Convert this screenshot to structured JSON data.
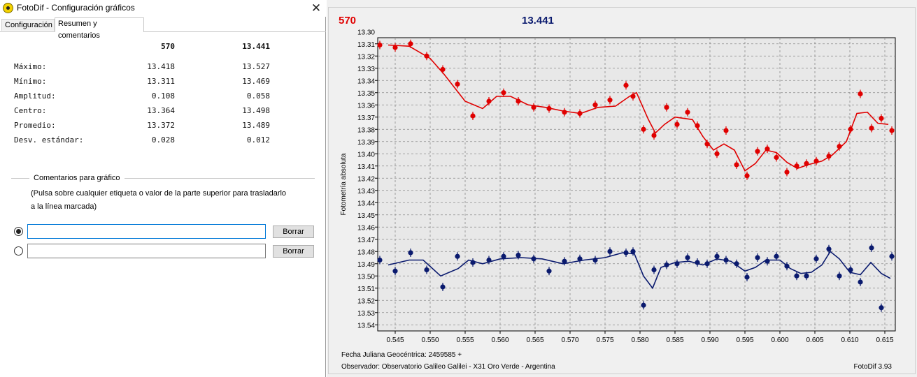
{
  "window": {
    "title": "FotoDif - Configuración gráficos",
    "close_glyph": "✕"
  },
  "tabs": [
    {
      "label": "Configuración",
      "active": false
    },
    {
      "label": "Resumen y comentarios",
      "active": true
    }
  ],
  "stats": {
    "columns": [
      "570",
      "13.441"
    ],
    "rows": [
      {
        "label": "Máximo:",
        "v1": "13.418",
        "v2": "13.527"
      },
      {
        "label": "Mínimo:",
        "v1": "13.311",
        "v2": "13.469"
      },
      {
        "label": "Amplitud:",
        "v1": "0.108",
        "v2": "0.058"
      },
      {
        "label": "Centro:",
        "v1": "13.364",
        "v2": "13.498"
      },
      {
        "label": "Promedio:",
        "v1": "13.372",
        "v2": "13.489"
      },
      {
        "label": "Desv. estándar:",
        "v1": "0.028",
        "v2": "0.012"
      }
    ]
  },
  "comments": {
    "group_label": "Comentarios para gráfico",
    "hint_line1": "(Pulsa sobre cualquier etiqueta o valor de la parte superior para trasladarlo",
    "hint_line2": "a la línea marcada)",
    "lines": [
      {
        "value": "",
        "selected": true,
        "button": "Borrar"
      },
      {
        "value": "",
        "selected": false,
        "button": "Borrar"
      }
    ]
  },
  "colors": {
    "series1": "#e00000",
    "series2": "#0a1a6e",
    "accent": "#0078d7"
  },
  "chart_data": {
    "type": "scatter",
    "legend_labels": [
      "570",
      "13.441"
    ],
    "ylabel": "Fotometría absoluta",
    "xlabel_line1": "Fecha Juliana Geocéntrica: 2459585 +",
    "xlabel_line2": "Observador: Observatorio Galileo Galilei - X31 Oro Verde - Argentina",
    "footer": "FotoDif 3.93",
    "xlim": [
      0.5425,
      0.6165
    ],
    "ylim": [
      13.305,
      13.545
    ],
    "y_reversed": true,
    "grid": true,
    "xticks": [
      "0.545",
      "0.550",
      "0.555",
      "0.560",
      "0.565",
      "0.570",
      "0.575",
      "0.580",
      "0.585",
      "0.590",
      "0.595",
      "0.600",
      "0.605",
      "0.610",
      "0.615"
    ],
    "yticks": [
      "13.30",
      "13.31",
      "13.32",
      "13.33",
      "13.34",
      "13.35",
      "13.36",
      "13.37",
      "13.38",
      "13.39",
      "13.40",
      "13.41",
      "13.42",
      "13.43",
      "13.44",
      "13.45",
      "13.46",
      "13.47",
      "13.48",
      "13.49",
      "13.50",
      "13.51",
      "13.52",
      "13.53",
      "13.54"
    ],
    "series": [
      {
        "name": "570",
        "color": "#e00000",
        "points": [
          [
            0.5428,
            13.311
          ],
          [
            0.545,
            13.313
          ],
          [
            0.5472,
            13.31
          ],
          [
            0.5495,
            13.32
          ],
          [
            0.5518,
            13.331
          ],
          [
            0.5539,
            13.343
          ],
          [
            0.5561,
            13.369
          ],
          [
            0.5584,
            13.357
          ],
          [
            0.5605,
            13.35
          ],
          [
            0.5626,
            13.357
          ],
          [
            0.5648,
            13.362
          ],
          [
            0.567,
            13.363
          ],
          [
            0.5692,
            13.366
          ],
          [
            0.5714,
            13.367
          ],
          [
            0.5736,
            13.36
          ],
          [
            0.5757,
            13.356
          ],
          [
            0.578,
            13.344
          ],
          [
            0.579,
            13.353
          ],
          [
            0.5805,
            13.38
          ],
          [
            0.582,
            13.385
          ],
          [
            0.5838,
            13.362
          ],
          [
            0.5853,
            13.376
          ],
          [
            0.5868,
            13.366
          ],
          [
            0.5882,
            13.377
          ],
          [
            0.5896,
            13.392
          ],
          [
            0.591,
            13.4
          ],
          [
            0.5923,
            13.381
          ],
          [
            0.5938,
            13.409
          ],
          [
            0.5953,
            13.418
          ],
          [
            0.5968,
            13.398
          ],
          [
            0.5982,
            13.396
          ],
          [
            0.5995,
            13.403
          ],
          [
            0.601,
            13.415
          ],
          [
            0.6024,
            13.41
          ],
          [
            0.6038,
            13.408
          ],
          [
            0.6052,
            13.406
          ],
          [
            0.607,
            13.402
          ],
          [
            0.6085,
            13.394
          ],
          [
            0.6101,
            13.38
          ],
          [
            0.6115,
            13.351
          ],
          [
            0.6131,
            13.379
          ],
          [
            0.6145,
            13.371
          ],
          [
            0.616,
            13.381
          ]
        ],
        "fit": [
          [
            0.544,
            13.311
          ],
          [
            0.547,
            13.312
          ],
          [
            0.55,
            13.322
          ],
          [
            0.552,
            13.335
          ],
          [
            0.555,
            13.357
          ],
          [
            0.5575,
            13.363
          ],
          [
            0.5595,
            13.353
          ],
          [
            0.5615,
            13.353
          ],
          [
            0.564,
            13.36
          ],
          [
            0.5665,
            13.362
          ],
          [
            0.569,
            13.365
          ],
          [
            0.5715,
            13.367
          ],
          [
            0.574,
            13.362
          ],
          [
            0.5765,
            13.361
          ],
          [
            0.5785,
            13.353
          ],
          [
            0.5795,
            13.35
          ],
          [
            0.5812,
            13.372
          ],
          [
            0.5822,
            13.383
          ],
          [
            0.5835,
            13.376
          ],
          [
            0.585,
            13.37
          ],
          [
            0.5875,
            13.372
          ],
          [
            0.589,
            13.386
          ],
          [
            0.5905,
            13.397
          ],
          [
            0.592,
            13.392
          ],
          [
            0.5935,
            13.397
          ],
          [
            0.595,
            13.414
          ],
          [
            0.5965,
            13.408
          ],
          [
            0.598,
            13.397
          ],
          [
            0.5995,
            13.399
          ],
          [
            0.601,
            13.407
          ],
          [
            0.6025,
            13.412
          ],
          [
            0.604,
            13.409
          ],
          [
            0.606,
            13.406
          ],
          [
            0.6075,
            13.401
          ],
          [
            0.6095,
            13.39
          ],
          [
            0.611,
            13.367
          ],
          [
            0.6125,
            13.366
          ],
          [
            0.614,
            13.375
          ],
          [
            0.6155,
            13.376
          ]
        ]
      },
      {
        "name": "13.441",
        "color": "#0a1a6e",
        "points": [
          [
            0.5428,
            13.487
          ],
          [
            0.545,
            13.496
          ],
          [
            0.5472,
            13.481
          ],
          [
            0.5495,
            13.495
          ],
          [
            0.5518,
            13.509
          ],
          [
            0.5539,
            13.484
          ],
          [
            0.5561,
            13.489
          ],
          [
            0.5584,
            13.487
          ],
          [
            0.5605,
            13.484
          ],
          [
            0.5626,
            13.483
          ],
          [
            0.5648,
            13.486
          ],
          [
            0.567,
            13.496
          ],
          [
            0.5692,
            13.488
          ],
          [
            0.5714,
            13.486
          ],
          [
            0.5736,
            13.487
          ],
          [
            0.5757,
            13.48
          ],
          [
            0.578,
            13.481
          ],
          [
            0.579,
            13.48
          ],
          [
            0.5805,
            13.524
          ],
          [
            0.582,
            13.495
          ],
          [
            0.5838,
            13.491
          ],
          [
            0.5853,
            13.49
          ],
          [
            0.5868,
            13.485
          ],
          [
            0.5882,
            13.489
          ],
          [
            0.5896,
            13.49
          ],
          [
            0.591,
            13.484
          ],
          [
            0.5923,
            13.487
          ],
          [
            0.5938,
            13.49
          ],
          [
            0.5953,
            13.501
          ],
          [
            0.5968,
            13.485
          ],
          [
            0.5982,
            13.488
          ],
          [
            0.5995,
            13.484
          ],
          [
            0.601,
            13.492
          ],
          [
            0.6024,
            13.5
          ],
          [
            0.6038,
            13.5
          ],
          [
            0.6052,
            13.486
          ],
          [
            0.607,
            13.478
          ],
          [
            0.6085,
            13.5
          ],
          [
            0.6101,
            13.495
          ],
          [
            0.6115,
            13.505
          ],
          [
            0.6131,
            13.477
          ],
          [
            0.6145,
            13.526
          ],
          [
            0.616,
            13.484
          ]
        ],
        "fit": [
          [
            0.544,
            13.491
          ],
          [
            0.547,
            13.487
          ],
          [
            0.549,
            13.487
          ],
          [
            0.5515,
            13.5
          ],
          [
            0.554,
            13.494
          ],
          [
            0.5555,
            13.487
          ],
          [
            0.5575,
            13.49
          ],
          [
            0.56,
            13.486
          ],
          [
            0.563,
            13.485
          ],
          [
            0.566,
            13.486
          ],
          [
            0.569,
            13.49
          ],
          [
            0.572,
            13.487
          ],
          [
            0.575,
            13.485
          ],
          [
            0.5775,
            13.481
          ],
          [
            0.5792,
            13.482
          ],
          [
            0.5805,
            13.5
          ],
          [
            0.5818,
            13.51
          ],
          [
            0.583,
            13.493
          ],
          [
            0.585,
            13.489
          ],
          [
            0.587,
            13.488
          ],
          [
            0.589,
            13.491
          ],
          [
            0.591,
            13.486
          ],
          [
            0.593,
            13.488
          ],
          [
            0.595,
            13.496
          ],
          [
            0.5965,
            13.493
          ],
          [
            0.598,
            13.487
          ],
          [
            0.6,
            13.487
          ],
          [
            0.6015,
            13.494
          ],
          [
            0.603,
            13.498
          ],
          [
            0.6045,
            13.497
          ],
          [
            0.606,
            13.491
          ],
          [
            0.6072,
            13.48
          ],
          [
            0.6085,
            13.486
          ],
          [
            0.61,
            13.497
          ],
          [
            0.6115,
            13.499
          ],
          [
            0.613,
            13.489
          ],
          [
            0.6145,
            13.498
          ],
          [
            0.6158,
            13.502
          ]
        ]
      }
    ]
  }
}
